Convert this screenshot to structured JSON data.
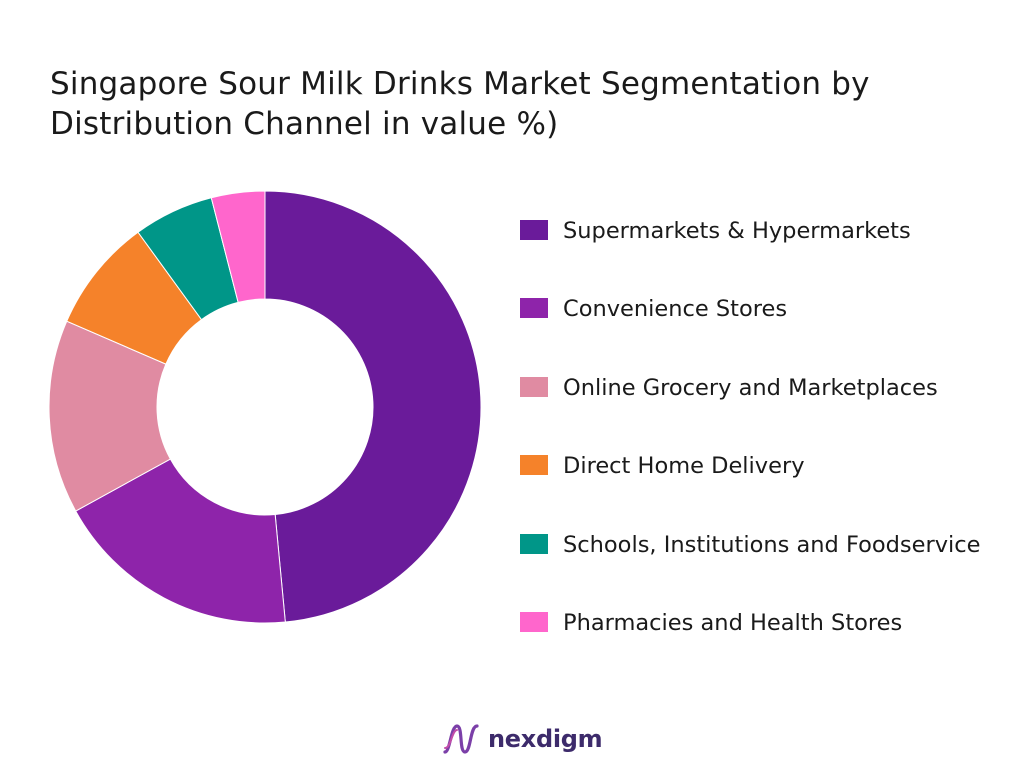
{
  "title_lines": [
    "Singapore Sour Milk Drinks Market Segmentation by",
    "Distribution Channel in value %)"
  ],
  "chart_data": {
    "type": "pie",
    "donut": true,
    "legend_position": "right",
    "categories": [
      "Supermarkets & Hypermarkets",
      "Convenience Stores",
      "Online Grocery and Marketplaces",
      "Direct Home Delivery",
      "Schools, Institutions and Foodservice",
      "Pharmacies and Health Stores"
    ],
    "values": [
      48.5,
      18.5,
      14.5,
      8.5,
      6,
      4
    ],
    "colors": [
      "#6a1b9a",
      "#8e24aa",
      "#e08ba2",
      "#f5822a",
      "#009688",
      "#ff66cc"
    ]
  },
  "legend": [
    {
      "label": "Supermarkets & Hypermarkets",
      "color": "#6a1b9a"
    },
    {
      "label": "Convenience Stores",
      "color": "#8e24aa"
    },
    {
      "label": "Online Grocery and Marketplaces",
      "color": "#e08ba2"
    },
    {
      "label": "Direct Home Delivery",
      "color": "#f5822a"
    },
    {
      "label": "Schools, Institutions and Foodservice",
      "color": "#009688"
    },
    {
      "label": "Pharmacies and Health Stores",
      "color": "#ff66cc"
    }
  ],
  "logo": {
    "text": "nexdigm",
    "icon": "nexdigm-wave-logo-icon"
  }
}
